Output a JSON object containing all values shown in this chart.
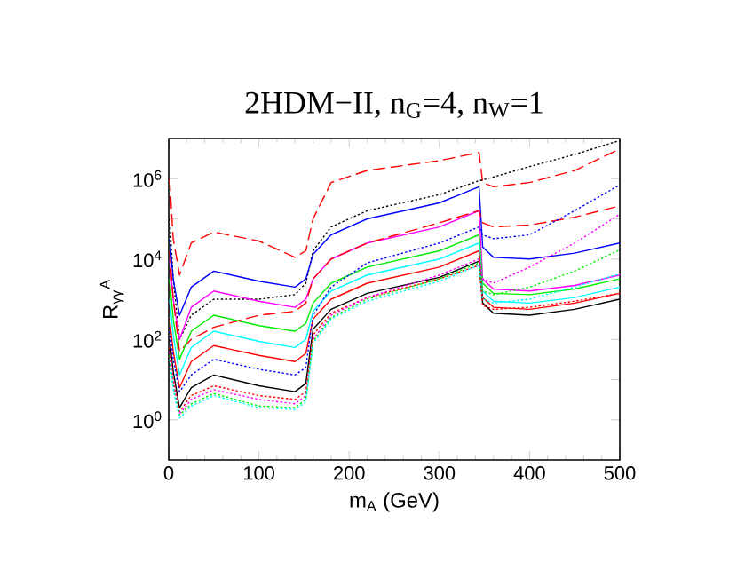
{
  "chart_data": {
    "type": "line",
    "title": "2HDM−II, n$_{G}$=4, n$_{W}$=1",
    "xlabel": "m$_{A}$ (GeV)",
    "ylabel": "R$_{γγ}$$^{A}$",
    "log": "y",
    "x": [
      1,
      5,
      12,
      25,
      50,
      100,
      140,
      152,
      160,
      180,
      220,
      300,
      344,
      348,
      360,
      400,
      450,
      500
    ],
    "xlim": [
      0,
      500
    ],
    "xticks": [
      0,
      100,
      200,
      300,
      400,
      500
    ],
    "ylim": [
      0.1,
      10000000
    ],
    "yticks": [
      {
        "value": 1,
        "label": "10$^{0}$"
      },
      {
        "value": 10,
        "label": null
      },
      {
        "value": 100,
        "label": "10$^{2}$"
      },
      {
        "value": 1000,
        "label": null
      },
      {
        "value": 10000,
        "label": "10$^{4}$"
      },
      {
        "value": 100000,
        "label": null
      },
      {
        "value": 1000000,
        "label": "10$^{6}$"
      }
    ],
    "series": [
      {
        "color": "#ff0000",
        "line_style": "dashed",
        "values": [
          1000000.0,
          32000.0,
          4000.0,
          25000.0,
          47000.0,
          28000.0,
          11000.0,
          16000.0,
          100000.0,
          800000.0,
          1600000.0,
          2800000.0,
          4500000.0,
          800000.0,
          630000.0,
          800000.0,
          1600000.0,
          5500000.0
        ]
      },
      {
        "color": "#000000",
        "line_style": "dotted",
        "values": [
          100000.0,
          3200.0,
          100,
          400,
          1000.0,
          1000.0,
          1300.0,
          2500.0,
          16000.0,
          63000.0,
          160000.0,
          400000.0,
          890000.0,
          930000.0,
          1100000.0,
          2000000.0,
          4000000.0,
          8900000.0
        ]
      },
      {
        "color": "#0000ff",
        "line_style": "solid",
        "values": [
          32000.0,
          3200.0,
          400,
          2000.0,
          5000.0,
          2800.0,
          2000.0,
          3200.0,
          13000.0,
          40000.0,
          100000.0,
          250000.0,
          630000.0,
          20000.0,
          11000.0,
          10000.0,
          14000.0,
          25000.0
        ]
      },
      {
        "color": "#ff00ff",
        "line_style": "solid",
        "values": [
          10000.0,
          1000.0,
          100,
          630,
          1600.0,
          890,
          630,
          1000.0,
          3200.0,
          10000.0,
          25000.0,
          63000.0,
          160000.0,
          3200.0,
          1800.0,
          1600.0,
          2200.0,
          4000.0
        ]
      },
      {
        "color": "#ff0000",
        "line_style": "dashed",
        "values": [
          16000.0,
          1000.0,
          50,
          100,
          200,
          400,
          500,
          800,
          3200.0,
          10000.0,
          25000.0,
          80000.0,
          160000.0,
          80000.0,
          63000.0,
          70000.0,
          110000.0,
          210000.0
        ]
      },
      {
        "color": "#00ee00",
        "line_style": "solid",
        "values": [
          3200.0,
          320,
          32,
          160,
          400,
          220,
          160,
          250,
          800,
          2500.0,
          6300.0,
          16000.0,
          40000.0,
          2500.0,
          1400.0,
          1300.0,
          1800.0,
          3200.0
        ]
      },
      {
        "color": "#00ffff",
        "line_style": "solid",
        "values": [
          1000.0,
          130,
          13,
          63,
          160,
          89,
          63,
          100,
          500,
          1600.0,
          4000.0,
          10000.0,
          25000.0,
          1600.0,
          890,
          800,
          1100.0,
          2000.0
        ]
      },
      {
        "color": "#ff0000",
        "line_style": "solid",
        "values": [
          320,
          50,
          6.3,
          28,
          70,
          40,
          28,
          45,
          320,
          1000.0,
          2500.0,
          6300.0,
          16000.0,
          1100.0,
          630,
          560,
          800,
          1400.0
        ]
      },
      {
        "color": "#0000ff",
        "line_style": "dotted",
        "values": [
          200,
          32,
          5,
          13,
          32,
          18,
          13,
          20,
          400,
          2000.0,
          8000.0,
          25000.0,
          63000.0,
          40000.0,
          32000.0,
          40000.0,
          160000.0,
          700000.0
        ]
      },
      {
        "color": "#000000",
        "line_style": "solid",
        "values": [
          100,
          16,
          2,
          6.3,
          13,
          7,
          5,
          8,
          180,
          560,
          1400.0,
          3500.0,
          8900.0,
          800,
          450,
          400,
          560,
          1000.0
        ]
      },
      {
        "color": "#ff0000",
        "line_style": "dotted",
        "values": [
          63,
          10,
          1.6,
          4,
          7,
          4,
          3.2,
          5,
          130,
          450,
          1100.0,
          3200.0,
          7000.0,
          700,
          560,
          630,
          890,
          1400.0
        ]
      },
      {
        "color": "#ff00ff",
        "line_style": "dotted",
        "values": [
          50,
          8,
          1.4,
          3.2,
          5.6,
          3.2,
          2.5,
          4,
          100,
          400,
          1100.0,
          4000.0,
          10000.0,
          3200.0,
          2500.0,
          6300.0,
          25000.0,
          130000.0
        ]
      },
      {
        "color": "#00ee00",
        "line_style": "dotted",
        "values": [
          40,
          6.3,
          1.3,
          2.5,
          4.5,
          2.2,
          2,
          3.2,
          89,
          350,
          1000.0,
          3200.0,
          8000.0,
          1600.0,
          1300.0,
          2000.0,
          5000.0,
          17000.0
        ]
      },
      {
        "color": "#00ffff",
        "line_style": "dotted",
        "values": [
          32,
          5.6,
          1.1,
          2.2,
          4,
          2,
          1.8,
          2.8,
          80,
          320,
          890,
          2800.0,
          7000.0,
          1000.0,
          800,
          1000.0,
          2000.0,
          4300.0
        ]
      }
    ]
  }
}
